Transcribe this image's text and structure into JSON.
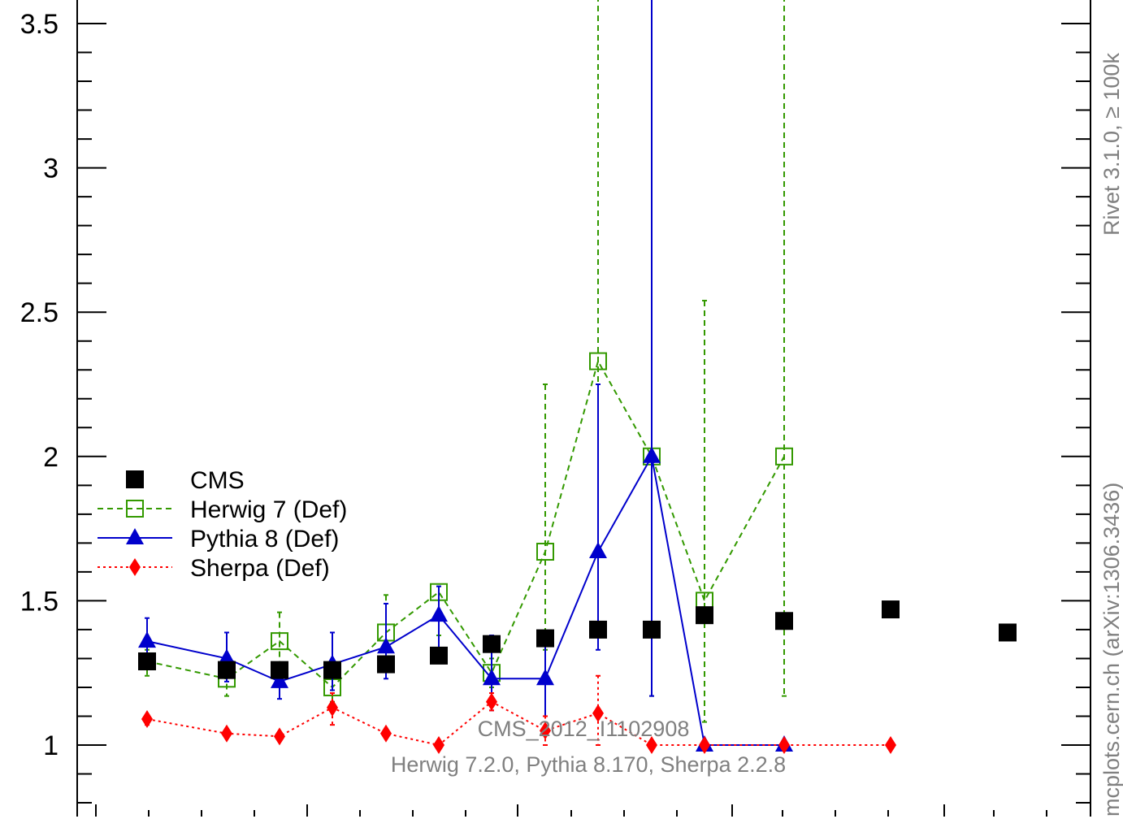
{
  "chart_data": {
    "type": "scatter",
    "ylim": [
      0.75,
      3.6
    ],
    "yticks": [
      1,
      1.5,
      2,
      2.5,
      3,
      3.5
    ],
    "ytick_labels": [
      "1",
      "1.5",
      "2",
      "2.5",
      "3",
      "3.5"
    ],
    "series": [
      {
        "name": "CMS",
        "color": "#000000",
        "marker": "square-filled",
        "line": "none",
        "points": [
          {
            "x": 1,
            "y": 1.29
          },
          {
            "x": 2,
            "y": 1.26
          },
          {
            "x": 3,
            "y": 1.26
          },
          {
            "x": 4,
            "y": 1.26
          },
          {
            "x": 5,
            "y": 1.28
          },
          {
            "x": 6,
            "y": 1.31
          },
          {
            "x": 7,
            "y": 1.35
          },
          {
            "x": 8,
            "y": 1.37
          },
          {
            "x": 9,
            "y": 1.4
          },
          {
            "x": 10,
            "y": 1.4
          },
          {
            "x": 11,
            "y": 1.45
          },
          {
            "x": 12,
            "y": 1.43
          },
          {
            "x": 13,
            "y": 1.47
          },
          {
            "x": 14,
            "y": 1.39
          }
        ]
      },
      {
        "name": "Herwig 7 (Def)",
        "color": "#339900",
        "marker": "square-open",
        "line": "dashed",
        "points": [
          {
            "x": 1,
            "y": 1.29,
            "lo": 1.24,
            "hi": 1.33
          },
          {
            "x": 2,
            "y": 1.23,
            "lo": 1.17,
            "hi": 1.28
          },
          {
            "x": 3,
            "y": 1.36,
            "lo": 1.27,
            "hi": 1.46
          },
          {
            "x": 4,
            "y": 1.2,
            "lo": 1.15,
            "hi": 1.24
          },
          {
            "x": 5,
            "y": 1.39,
            "lo": 1.26,
            "hi": 1.52
          },
          {
            "x": 6,
            "y": 1.53,
            "lo": 1.38,
            "hi": 1.55
          },
          {
            "x": 7,
            "y": 1.25,
            "lo": 1.2,
            "hi": 1.3
          },
          {
            "x": 8,
            "y": 1.67,
            "lo": 1.33,
            "hi": 2.25
          },
          {
            "x": 9,
            "y": 2.33,
            "lo": 1.4,
            "hi": 3.6
          },
          {
            "x": 10,
            "y": 2.0,
            "lo": 1.17,
            "hi": 2.0
          },
          {
            "x": 11,
            "y": 1.5,
            "lo": 1.08,
            "hi": 2.54
          },
          {
            "x": 12,
            "y": 2.0,
            "lo": 1.17,
            "hi": 3.6
          }
        ]
      },
      {
        "name": "Pythia 8 (Def)",
        "color": "#0000cc",
        "marker": "triangle-filled",
        "line": "solid",
        "points": [
          {
            "x": 1,
            "y": 1.36,
            "lo": 1.29,
            "hi": 1.44
          },
          {
            "x": 2,
            "y": 1.3,
            "lo": 1.22,
            "hi": 1.39
          },
          {
            "x": 3,
            "y": 1.22,
            "lo": 1.16,
            "hi": 1.28
          },
          {
            "x": 4,
            "y": 1.28,
            "lo": 1.19,
            "hi": 1.39
          },
          {
            "x": 5,
            "y": 1.34,
            "lo": 1.23,
            "hi": 1.49
          },
          {
            "x": 6,
            "y": 1.45,
            "lo": 1.3,
            "hi": 1.55
          },
          {
            "x": 7,
            "y": 1.23,
            "lo": 1.12,
            "hi": 1.38
          },
          {
            "x": 8,
            "y": 1.23,
            "lo": 1.1,
            "hi": 1.36
          },
          {
            "x": 9,
            "y": 1.67,
            "lo": 1.33,
            "hi": 2.25
          },
          {
            "x": 10,
            "y": 2.0,
            "lo": 1.17,
            "hi": 3.6
          },
          {
            "x": 11,
            "y": 1.0,
            "lo": 1.0,
            "hi": 1.0
          },
          {
            "x": 12,
            "y": 1.0,
            "lo": 1.0,
            "hi": 1.0
          }
        ]
      },
      {
        "name": "Sherpa (Def)",
        "color": "#ff0000",
        "marker": "diamond-filled",
        "line": "dotted",
        "points": [
          {
            "x": 1,
            "y": 1.09,
            "lo": 1.07,
            "hi": 1.1
          },
          {
            "x": 2,
            "y": 1.04,
            "lo": 1.03,
            "hi": 1.05
          },
          {
            "x": 3,
            "y": 1.03,
            "lo": 1.02,
            "hi": 1.04
          },
          {
            "x": 4,
            "y": 1.13,
            "lo": 1.07,
            "hi": 1.18
          },
          {
            "x": 5,
            "y": 1.04,
            "lo": 1.03,
            "hi": 1.05
          },
          {
            "x": 6,
            "y": 1.0,
            "lo": 1.0,
            "hi": 1.0
          },
          {
            "x": 7,
            "y": 1.15,
            "lo": 1.12,
            "hi": 1.18
          },
          {
            "x": 8,
            "y": 1.05,
            "lo": 1.0,
            "hi": 1.1
          },
          {
            "x": 9,
            "y": 1.11,
            "lo": 1.0,
            "hi": 1.24
          },
          {
            "x": 10,
            "y": 1.0,
            "lo": 1.0,
            "hi": 1.0
          },
          {
            "x": 11,
            "y": 1.0,
            "lo": 1.0,
            "hi": 1.0
          },
          {
            "x": 12,
            "y": 1.0,
            "lo": 1.0,
            "hi": 1.0
          },
          {
            "x": 13,
            "y": 1.0,
            "lo": 1.0,
            "hi": 1.0
          }
        ]
      }
    ],
    "legend": [
      "CMS",
      "Herwig 7 (Def)",
      "Pythia 8 (Def)",
      "Sherpa (Def)"
    ],
    "legend_position": "left-middle",
    "annotation_lines": [
      "CMS_2012_I1102908",
      "Herwig 7.2.0, Pythia 8.170, Sherpa 2.2.8"
    ],
    "side_labels": {
      "right_top": "Rivet 3.1.0, ≥ 100k",
      "right_bottom": "mcplots.cern.ch (arXiv:1306.3436)"
    }
  }
}
